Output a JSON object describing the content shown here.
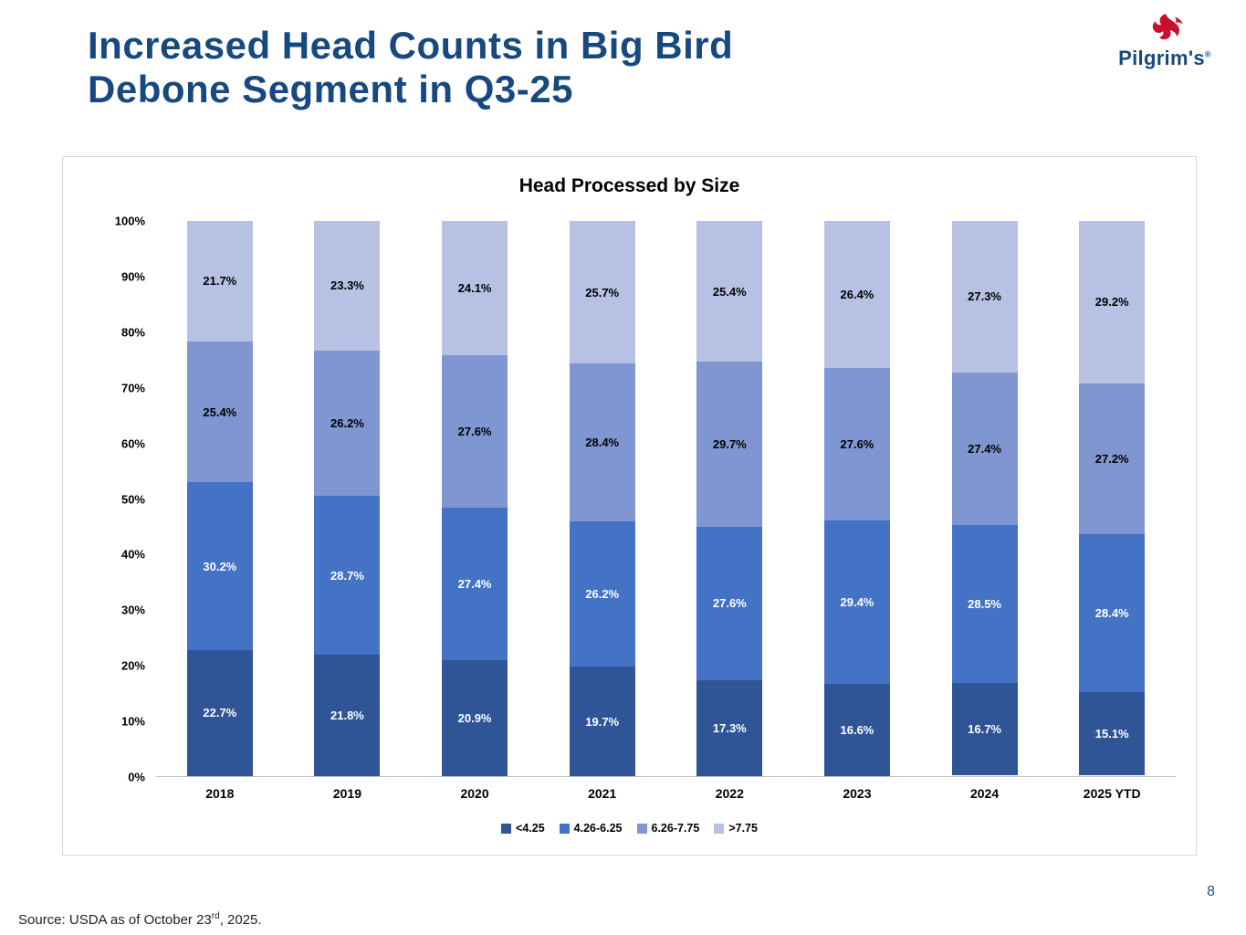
{
  "slide": {
    "title": "Increased Head Counts in Big Bird Debone Segment in Q3-25",
    "page_number": "8",
    "source": {
      "prefix": "Source: USDA as of October 23",
      "sup": "rd",
      "suffix": ", 2025."
    },
    "logo": {
      "text": "Pilgrim's",
      "reg": "®"
    }
  },
  "chart_data": {
    "type": "bar",
    "stacked": true,
    "title": "Head Processed by Size",
    "categories": [
      "2018",
      "2019",
      "2020",
      "2021",
      "2022",
      "2023",
      "2024",
      "2025 YTD"
    ],
    "series": [
      {
        "name": "<4.25",
        "color": "#2F5597",
        "label_color": "#FFFFFF",
        "values": [
          22.7,
          21.8,
          20.9,
          19.7,
          17.3,
          16.6,
          16.7,
          15.1
        ]
      },
      {
        "name": "4.26-6.25",
        "color": "#4472C4",
        "label_color": "#FFFFFF",
        "values": [
          30.2,
          28.7,
          27.4,
          26.2,
          27.6,
          29.4,
          28.5,
          28.4
        ]
      },
      {
        "name": "6.26-7.75",
        "color": "#7F96D2",
        "label_color": "#000000",
        "values": [
          25.4,
          26.2,
          27.6,
          28.4,
          29.7,
          27.6,
          27.4,
          27.2
        ]
      },
      {
        "name": ">7.75",
        "color": "#B6C1E3",
        "label_color": "#000000",
        "values": [
          21.7,
          23.3,
          24.1,
          25.7,
          25.4,
          26.4,
          27.3,
          29.2
        ]
      }
    ],
    "y_ticks": [
      "100%",
      "90%",
      "80%",
      "70%",
      "60%",
      "50%",
      "40%",
      "30%",
      "20%",
      "10%",
      "0%"
    ],
    "ylim": [
      0,
      100
    ],
    "xlabel": "",
    "ylabel": "",
    "grid": false,
    "legend_position": "bottom"
  }
}
